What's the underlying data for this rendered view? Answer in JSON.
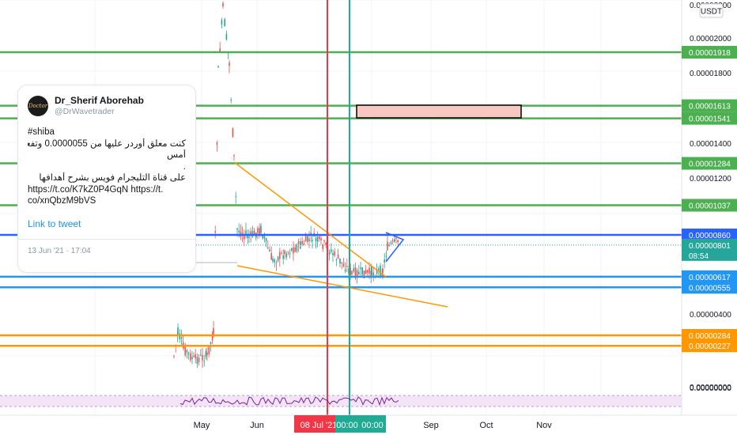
{
  "chart_data": {
    "type": "line",
    "price_scale_unit": "USDT",
    "y_axis_labels": [
      "0.00002200",
      "0.00002000",
      "0.00001800",
      "0.00001400",
      "0.00001200",
      "0.00000400",
      "0.00000000"
    ],
    "ylim": [
      0,
      2.2e-05
    ],
    "x_axis_labels": [
      "May",
      "Jun",
      "Sep",
      "Oct",
      "Nov"
    ],
    "x_markers": [
      {
        "label": "08 Jul '21",
        "color": "#f23645"
      },
      {
        "label": "00:00",
        "color": "#22ab94"
      }
    ],
    "horizontal_levels": [
      {
        "value": 1.918e-05,
        "label": "0.00001918",
        "color": "#4caf50"
      },
      {
        "value": 1.613e-05,
        "label": "0.00001613",
        "color": "#4caf50"
      },
      {
        "value": 1.541e-05,
        "label": "0.00001541",
        "color": "#4caf50"
      },
      {
        "value": 1.284e-05,
        "label": "0.00001284",
        "color": "#4caf50"
      },
      {
        "value": 1.037e-05,
        "label": "0.00001037",
        "color": "#4caf50"
      },
      {
        "value": 8.6e-06,
        "label": "0.00000860",
        "color": "#2962ff"
      },
      {
        "value": 6.17e-06,
        "label": "0.00000617",
        "color": "#2196f3"
      },
      {
        "value": 5.55e-06,
        "label": "0.00000555",
        "color": "#2196f3"
      },
      {
        "value": 2.84e-06,
        "label": "0.00000284",
        "color": "#ff9800"
      },
      {
        "value": 2.27e-06,
        "label": "0.00000227",
        "color": "#ff9800"
      }
    ],
    "last_price": {
      "value": 8.01e-06,
      "label": "0.00000801",
      "countdown": "08:54",
      "color": "#26a69a"
    },
    "grid": true,
    "legend": "none"
  },
  "tweet": {
    "name": "Dr_Sherif Aborehab",
    "handle": "@DrWavetrader",
    "avatar_text": "Doctor",
    "hashtag": "#shiba",
    "text_line1": "كنت معلق أوردر عليها من 0.0000055 وتفعل الأوردر",
    "text_line2": "أمس",
    "text_line3": ".",
    "text_line4": "على قناة التليجرام فويس بشرح أهدافها",
    "link_line1": "https://t.co/K7kZ0P4GqN https://t.",
    "link_line2": "co/xnQbzM9bVS",
    "link_to_tweet": "Link to tweet",
    "timestamp": "13 Jun '21 · 17:04"
  },
  "colors": {
    "green_level": "#4caf50",
    "blue_level": "#2962ff",
    "light_blue_level": "#2196f3",
    "orange_level": "#ff9800",
    "trendline": "#ff9800",
    "rectangle_fill": "#f8c8c0",
    "candle_up": "#26a69a",
    "candle_down": "#ef5350",
    "rsi_line": "#7b1fa2",
    "rsi_band": "#f3e5f5"
  }
}
